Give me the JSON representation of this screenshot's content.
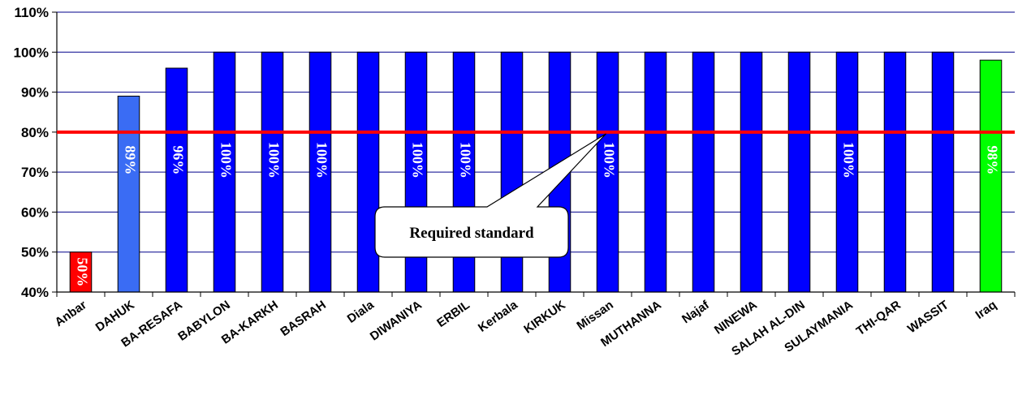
{
  "chart_data": {
    "type": "bar",
    "categories": [
      "Anbar",
      "DAHUK",
      "BA-RESAFA",
      "BABYLON",
      "BA-KARKH",
      "BASRAH",
      "Diala",
      "DIWANIYA",
      "ERBIL",
      "Kerbala",
      "KIRKUK",
      "Missan",
      "MUTHANNA",
      "Najaf",
      "NINEWA",
      "SALAH AL-DIN",
      "SULAYMANIA",
      "THI-QAR",
      "WASSIT",
      "Iraq"
    ],
    "values": [
      50,
      89,
      96,
      100,
      100,
      100,
      100,
      100,
      100,
      100,
      100,
      100,
      100,
      100,
      100,
      100,
      100,
      100,
      100,
      98
    ],
    "data_labels": [
      "50%",
      "89%",
      "96%",
      "100%",
      "100%",
      "100%",
      "",
      "100%",
      "100%",
      "",
      "",
      "100%",
      "",
      "",
      "",
      "",
      "100%",
      "",
      "",
      "98%"
    ],
    "bar_colors": [
      "#ff0000",
      "#3a6cf4",
      "#0000ff",
      "#0000ff",
      "#0000ff",
      "#0000ff",
      "#0000ff",
      "#0000ff",
      "#0000ff",
      "#0000ff",
      "#0000ff",
      "#0000ff",
      "#0000ff",
      "#0000ff",
      "#0000ff",
      "#0000ff",
      "#0000ff",
      "#0000ff",
      "#0000ff",
      "#00ff00"
    ],
    "ylim": [
      40,
      110
    ],
    "yticks": [
      40,
      50,
      60,
      70,
      80,
      90,
      100,
      110
    ],
    "ytick_labels": [
      "40%",
      "50%",
      "60%",
      "70%",
      "80%",
      "90%",
      "100%",
      "110%"
    ],
    "grid": true,
    "reference_line": {
      "value": 80,
      "color": "#ff0000"
    },
    "callout": {
      "text": "Required standard",
      "points_to": {
        "category": "Missan",
        "value": 80
      }
    },
    "gridline_color": "#00008b",
    "bar_outline_color": "#000000"
  }
}
